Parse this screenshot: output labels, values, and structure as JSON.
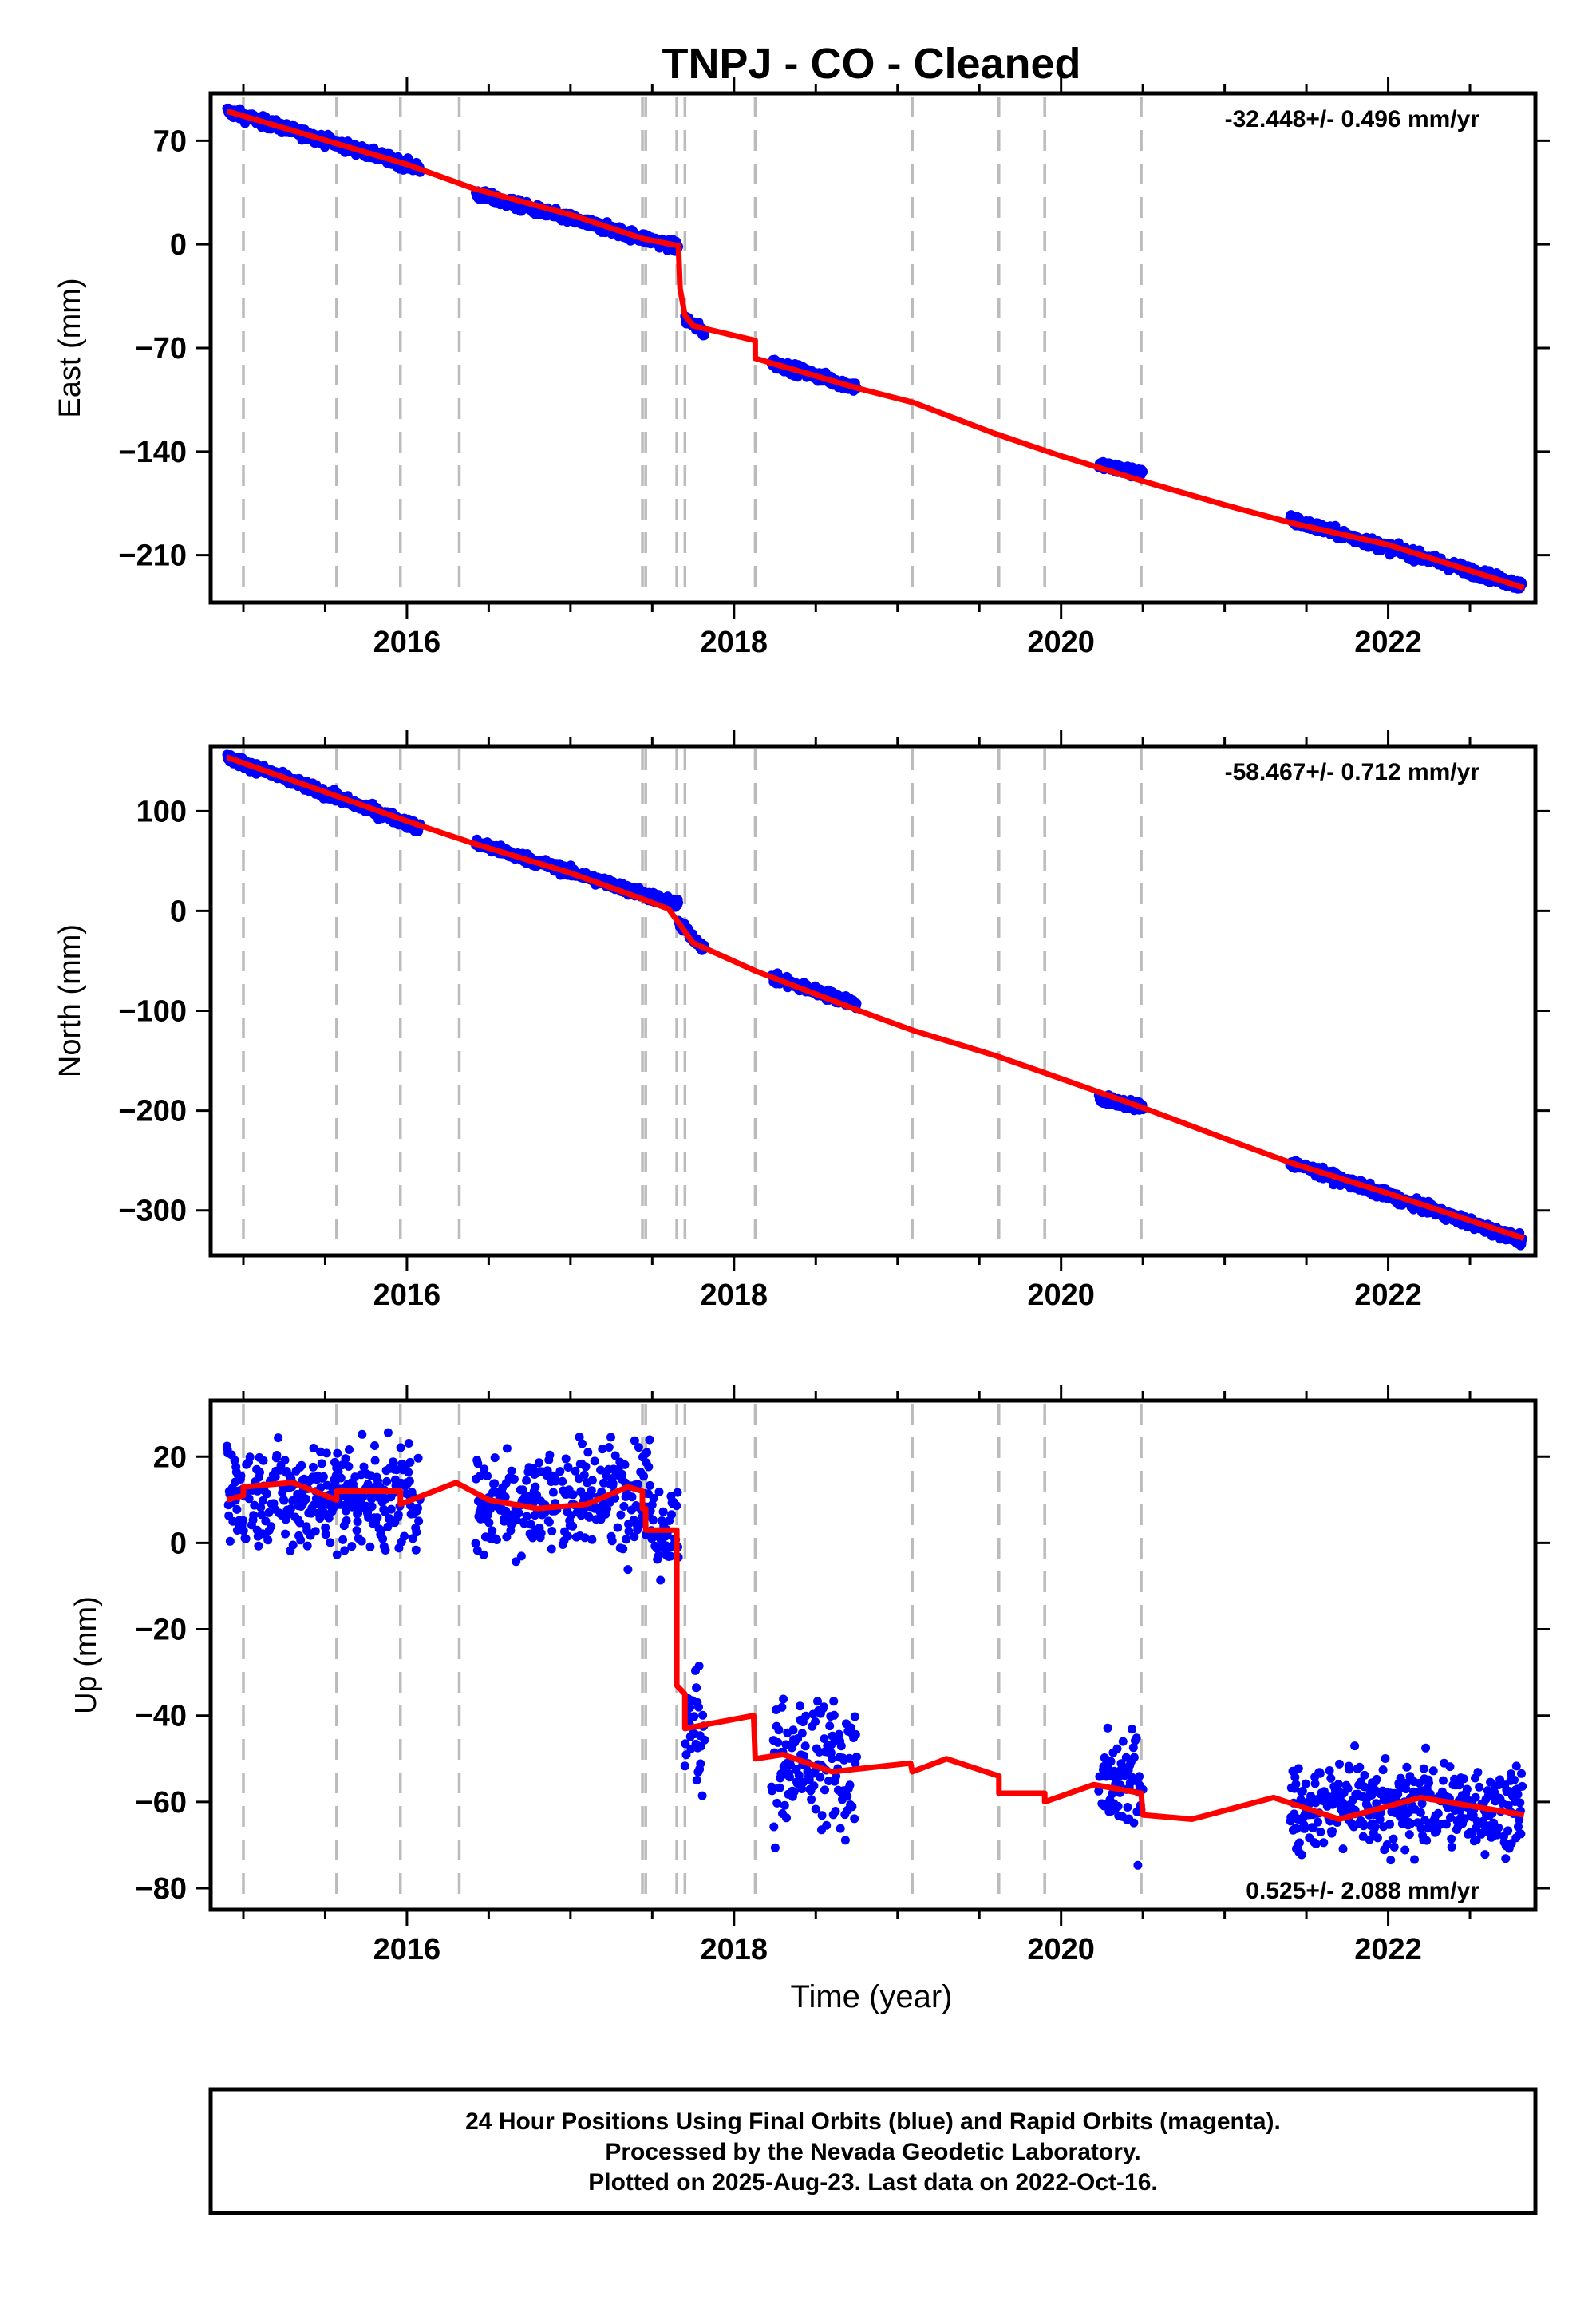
{
  "title": "TNPJ  - CO - Cleaned",
  "colors": {
    "final": "#0000ff",
    "model": "#ff0000",
    "events": "#bbbbbb",
    "frame": "#000000"
  },
  "xlabel": "Time (year)",
  "footer": {
    "line1": "24 Hour Positions Using Final Orbits (blue) and Rapid Orbits (magenta).",
    "line2": "Processed by the Nevada Geodetic Laboratory.",
    "line3": "Plotted on 2025-Aug-23. Last data on 2022-Oct-16."
  },
  "chart_data": [
    {
      "type": "scatter",
      "panel": "east",
      "ylabel": "East (mm)",
      "rate_label": "-32.448+/- 0.496 mm/yr",
      "xlim": [
        2014.8,
        2022.9
      ],
      "ylim": [
        -242,
        102
      ],
      "xticks": [
        2016,
        2018,
        2020,
        2022
      ],
      "yticks": [
        70,
        0,
        -70,
        -140,
        -210
      ],
      "event_lines": [
        2015.0,
        2015.57,
        2015.96,
        2016.32,
        2017.44,
        2017.46,
        2017.65,
        2017.7,
        2018.13,
        2019.09,
        2019.62,
        2019.9,
        2020.49
      ],
      "data_segments": [
        {
          "x": [
            2014.9,
            2016.08
          ],
          "y0": 90,
          "slope": -32.8
        },
        {
          "x": [
            2016.42,
            2017.66
          ],
          "y0": 34,
          "slope": -29
        },
        {
          "x": [
            2017.7,
            2017.82
          ],
          "y0": -50,
          "slope": -80
        },
        {
          "x": [
            2018.23,
            2018.75
          ],
          "y0": -80,
          "slope": -32
        },
        {
          "x": [
            2020.23,
            2020.5
          ],
          "y0": -149,
          "slope": -22
        },
        {
          "x": [
            2021.4,
            2022.82
          ],
          "y0": -186,
          "slope": -31.5
        }
      ],
      "model_line": {
        "x": [
          2014.9,
          2016.0,
          2016.4,
          2017.0,
          2017.44,
          2017.66,
          2017.67,
          2017.7,
          2017.75,
          2018.13,
          2018.13,
          2018.75,
          2019.1,
          2019.6,
          2020.0,
          2020.5,
          2021.0,
          2021.4,
          2022.0,
          2022.83
        ],
        "y": [
          90,
          54,
          38,
          20,
          4,
          -1,
          -30,
          -48,
          -55,
          -65,
          -77,
          -97,
          -107,
          -128,
          -143,
          -160,
          -176,
          -188,
          -203,
          -232
        ]
      },
      "notes": "blue daily positions drawn by the script from the segment trends with scatter"
    },
    {
      "type": "scatter",
      "panel": "north",
      "ylabel": "North (mm)",
      "rate_label": "-58.467+/- 0.712 mm/yr",
      "xlim": [
        2014.8,
        2022.9
      ],
      "ylim": [
        -345,
        165
      ],
      "xticks": [
        2016,
        2018,
        2020,
        2022
      ],
      "yticks": [
        100,
        0,
        -100,
        -200,
        -300
      ],
      "event_lines": [
        2015.0,
        2015.57,
        2015.96,
        2016.32,
        2017.44,
        2017.46,
        2017.65,
        2017.7,
        2018.13,
        2019.09,
        2019.62,
        2019.9,
        2020.49
      ],
      "data_segments": [
        {
          "x": [
            2014.9,
            2016.08
          ],
          "y0": 154,
          "slope": -60
        },
        {
          "x": [
            2016.42,
            2017.66
          ],
          "y0": 68,
          "slope": -50
        },
        {
          "x": [
            2017.66,
            2017.82
          ],
          "y0": -12,
          "slope": -160
        },
        {
          "x": [
            2018.23,
            2018.75
          ],
          "y0": -67,
          "slope": -50
        },
        {
          "x": [
            2020.23,
            2020.5
          ],
          "y0": -188,
          "slope": -30
        },
        {
          "x": [
            2021.4,
            2022.82
          ],
          "y0": -252,
          "slope": -55
        }
      ],
      "model_line": {
        "x": [
          2014.9,
          2016.0,
          2016.4,
          2017.0,
          2017.44,
          2017.6,
          2017.75,
          2018.13,
          2018.75,
          2019.1,
          2019.6,
          2020.0,
          2020.5,
          2021.0,
          2021.4,
          2022.0,
          2022.83
        ],
        "y": [
          154,
          90,
          68,
          38,
          12,
          2,
          -32,
          -60,
          -99,
          -120,
          -145,
          -168,
          -197,
          -228,
          -252,
          -283,
          -328
        ]
      },
      "notes": "blue daily positions drawn by the script from the segment trends with scatter"
    },
    {
      "type": "scatter",
      "panel": "up",
      "ylabel": "Up (mm)",
      "rate_label": "0.525+/- 2.088 mm/yr",
      "xlim": [
        2014.8,
        2022.9
      ],
      "ylim": [
        -85,
        33
      ],
      "xticks": [
        2016,
        2018,
        2020,
        2022
      ],
      "yticks": [
        20,
        0,
        -20,
        -40,
        -60,
        -80
      ],
      "event_lines": [
        2015.0,
        2015.57,
        2015.96,
        2016.32,
        2017.44,
        2017.46,
        2017.65,
        2017.7,
        2018.13,
        2019.09,
        2019.62,
        2019.9,
        2020.49
      ],
      "data_segments": [
        {
          "x": [
            2014.9,
            2016.08
          ],
          "y0": 11,
          "slope": 0,
          "noise": 6
        },
        {
          "x": [
            2016.42,
            2017.5
          ],
          "y0": 9,
          "slope": 3,
          "noise": 6
        },
        {
          "x": [
            2017.5,
            2017.66
          ],
          "y0": 3,
          "slope": 0,
          "noise": 5
        },
        {
          "x": [
            2017.7,
            2017.82
          ],
          "y0": -42,
          "slope": 0,
          "noise": 7
        },
        {
          "x": [
            2018.23,
            2018.75
          ],
          "y0": -52,
          "slope": 0,
          "noise": 8
        },
        {
          "x": [
            2020.23,
            2020.5
          ],
          "y0": -56,
          "slope": 0,
          "noise": 6
        },
        {
          "x": [
            2021.4,
            2022.82
          ],
          "y0": -61,
          "slope": 0,
          "noise": 5
        }
      ],
      "model_line": {
        "x": [
          2014.9,
          2015.0,
          2015.0,
          2015.3,
          2015.57,
          2015.57,
          2015.96,
          2015.96,
          2016.3,
          2016.5,
          2016.8,
          2017.1,
          2017.35,
          2017.44,
          2017.44,
          2017.46,
          2017.46,
          2017.65,
          2017.65,
          2017.7,
          2017.7,
          2018.12,
          2018.13,
          2018.3,
          2018.6,
          2019.08,
          2019.09,
          2019.3,
          2019.62,
          2019.62,
          2019.9,
          2019.9,
          2020.2,
          2020.49,
          2020.5,
          2020.8,
          2021.3,
          2021.7,
          2022.2,
          2022.83
        ],
        "y": [
          10,
          11,
          13,
          14,
          10,
          12,
          12,
          9,
          14,
          10,
          8,
          9,
          13,
          12,
          8,
          8,
          3,
          3,
          -33,
          -35,
          -43,
          -40,
          -50,
          -49,
          -53,
          -51,
          -53,
          -50,
          -54,
          -58,
          -58,
          -60,
          -56,
          -58,
          -63,
          -64,
          -59,
          -64,
          -59,
          -63
        ]
      },
      "notes": "blue daily positions drawn by the script from the segment levels with scatter"
    }
  ]
}
